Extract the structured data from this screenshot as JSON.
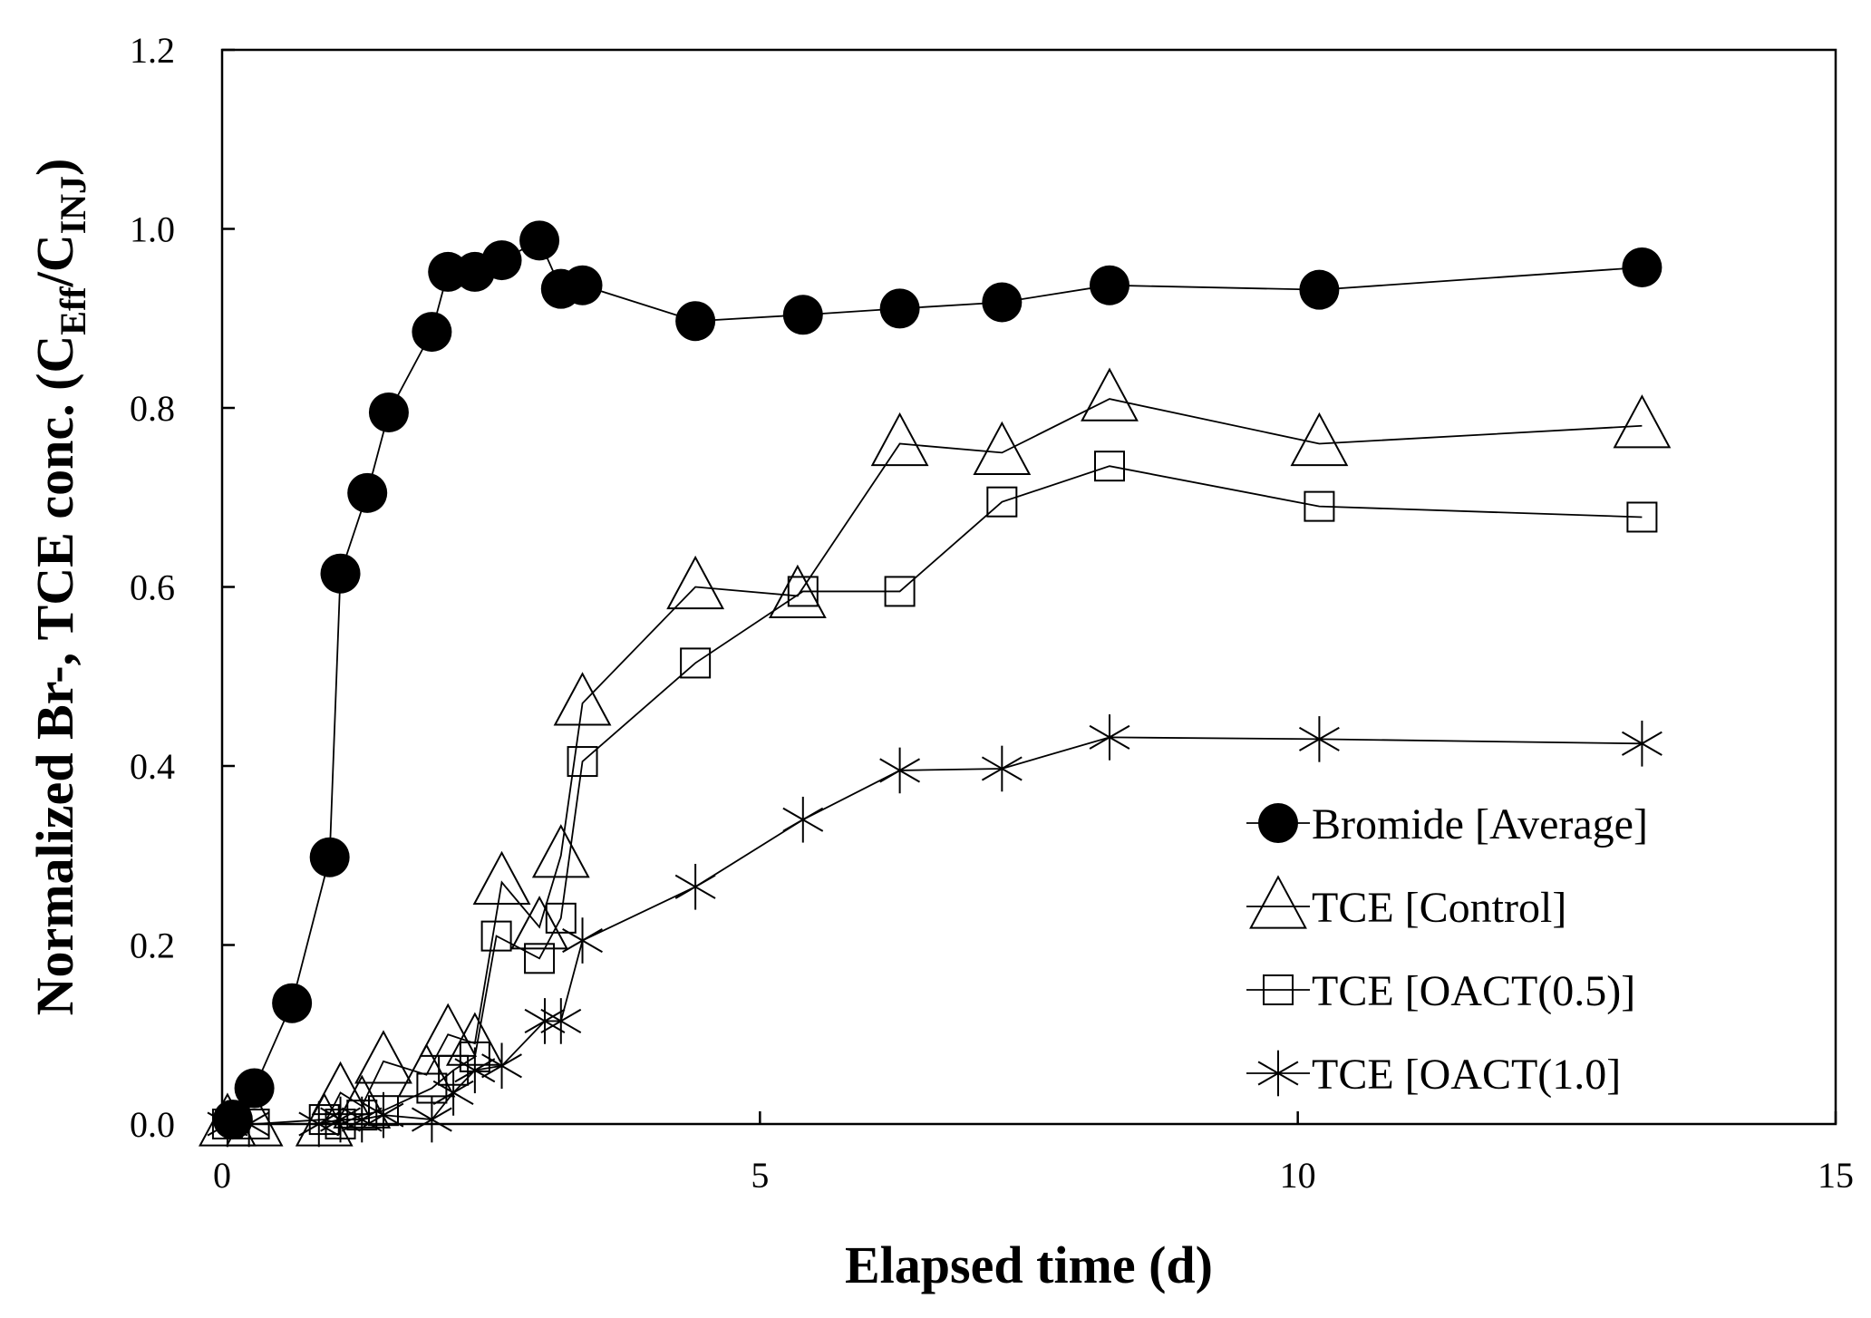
{
  "chart_data": {
    "type": "scatter",
    "title": "",
    "xlabel": "Elapsed time (d)",
    "ylabel": "Normalized Br-, TCE conc. (C",
    "ylabel_sub1": "Eff",
    "ylabel_slash": "/C",
    "ylabel_sub2": "INJ",
    "ylabel_close": ")",
    "xlim": [
      0,
      15
    ],
    "ylim": [
      0,
      1.2
    ],
    "xticks": [
      0,
      5,
      10,
      15
    ],
    "xtick_labels": [
      "0",
      "5",
      "10",
      "15"
    ],
    "yticks": [
      0,
      0.2,
      0.4,
      0.6,
      0.8,
      1.0,
      1.2
    ],
    "ytick_labels": [
      "0.0",
      "0.2",
      "0.4",
      "0.6",
      "0.8",
      "1.0",
      "1.2"
    ],
    "grid": false,
    "legend_position": "bottom-right",
    "series": [
      {
        "name": "Bromide [Average]",
        "marker": "filled-circle",
        "x": [
          0.1,
          0.3,
          0.65,
          1.0,
          1.1,
          1.35,
          1.55,
          1.95,
          2.1,
          2.35,
          2.6,
          2.95,
          3.15,
          3.35,
          4.4,
          5.4,
          6.3,
          7.25,
          8.25,
          10.2,
          13.2
        ],
        "y": [
          0.005,
          0.04,
          0.135,
          0.298,
          0.615,
          0.705,
          0.795,
          0.885,
          0.952,
          0.952,
          0.965,
          0.987,
          0.933,
          0.937,
          0.897,
          0.904,
          0.911,
          0.918,
          0.937,
          0.932,
          0.957
        ]
      },
      {
        "name": "TCE [Control]",
        "marker": "open-triangle",
        "x": [
          0.05,
          0.3,
          0.95,
          1.1,
          1.3,
          1.5,
          1.9,
          2.1,
          2.35,
          2.6,
          2.95,
          3.15,
          3.35,
          4.4,
          5.35,
          6.3,
          7.25,
          8.25,
          10.2,
          13.2
        ],
        "y": [
          0.0,
          0.0,
          0.0,
          0.035,
          0.02,
          0.07,
          0.055,
          0.1,
          0.09,
          0.27,
          0.22,
          0.3,
          0.47,
          0.6,
          0.59,
          0.76,
          0.75,
          0.81,
          0.76,
          0.78
        ]
      },
      {
        "name": "TCE [OACT(0.5)]",
        "marker": "open-square",
        "x": [
          0.05,
          0.3,
          0.95,
          1.1,
          1.3,
          1.5,
          1.95,
          2.15,
          2.35,
          2.55,
          2.95,
          3.15,
          3.35,
          4.4,
          5.4,
          6.3,
          7.25,
          8.25,
          10.2,
          13.2
        ],
        "y": [
          0.0,
          0.0,
          0.005,
          0.0,
          0.01,
          0.015,
          0.04,
          0.06,
          0.075,
          0.21,
          0.185,
          0.23,
          0.405,
          0.515,
          0.595,
          0.595,
          0.695,
          0.735,
          0.69,
          0.678
        ]
      },
      {
        "name": "TCE [OACT(1.0]",
        "marker": "asterisk",
        "x": [
          0.05,
          0.25,
          0.9,
          1.1,
          1.3,
          1.5,
          1.95,
          2.15,
          2.35,
          2.6,
          3.0,
          3.15,
          3.35,
          4.4,
          5.4,
          6.3,
          7.25,
          8.25,
          10.2,
          13.2
        ],
        "y": [
          0.0,
          0.0,
          0.0,
          0.005,
          0.005,
          0.01,
          0.005,
          0.035,
          0.06,
          0.065,
          0.115,
          0.115,
          0.205,
          0.265,
          0.34,
          0.395,
          0.397,
          0.432,
          0.43,
          0.425
        ]
      }
    ]
  }
}
